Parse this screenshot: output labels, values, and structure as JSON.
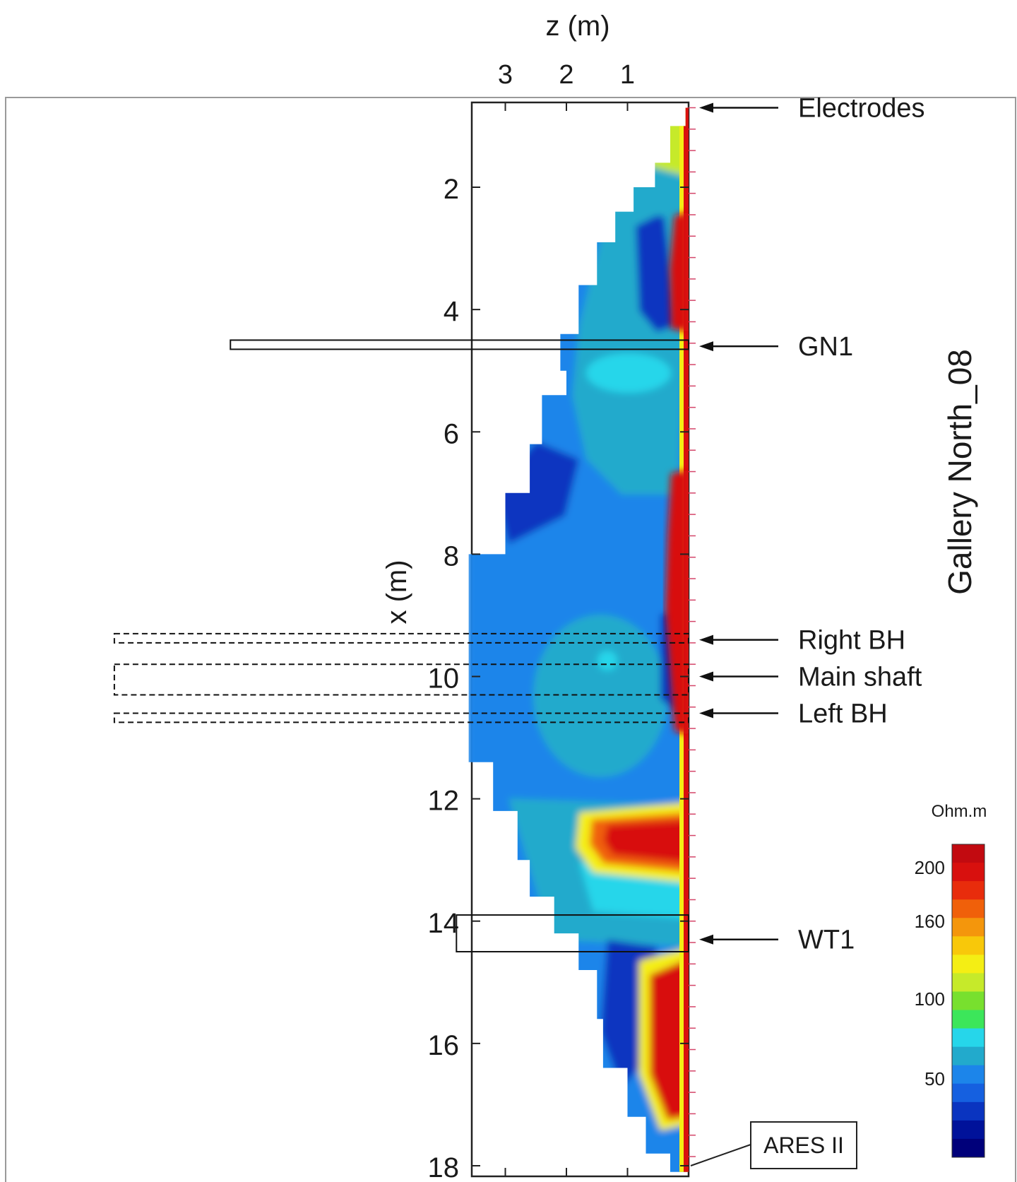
{
  "chart_data": {
    "type": "heatmap",
    "title": "Gallery North_08",
    "xlabel": "z (m)",
    "ylabel": "x (m)",
    "z_ticks": [
      3,
      2,
      1
    ],
    "z_range": [
      3.6,
      0
    ],
    "x_ticks": [
      2,
      4,
      6,
      8,
      10,
      12,
      14,
      16,
      18
    ],
    "x_range": [
      0.6,
      18.1
    ],
    "colorbar": {
      "unit": "Ohm.m",
      "ticks": [
        200,
        160,
        100,
        50
      ],
      "colors": [
        "#00007a",
        "#00129a",
        "#0a34c0",
        "#1560e0",
        "#1c85ea",
        "#22aacc",
        "#26d6ea",
        "#3ce65a",
        "#78e02e",
        "#c6ea2a",
        "#f4ee14",
        "#f8c80a",
        "#f4960c",
        "#f0600a",
        "#e82c0c",
        "#d8100e",
        "#c20a10"
      ]
    },
    "annotations": [
      {
        "label": "Electrodes",
        "x": 0.7
      },
      {
        "label": "GN1",
        "x": 4.6
      },
      {
        "label": "Right BH",
        "x": 9.4
      },
      {
        "label": "Main shaft",
        "x": 10.0
      },
      {
        "label": "Left BH",
        "x": 10.6
      },
      {
        "label": "WT1",
        "x": 14.3
      }
    ],
    "boxed_label": {
      "label": "ARES II",
      "x": 18.0
    },
    "structures": [
      {
        "name": "GN1",
        "x_from": 4.5,
        "x_to": 4.65,
        "z_depth": 7.5,
        "style": "solid"
      },
      {
        "name": "Right BH",
        "x_from": 9.3,
        "x_to": 9.45,
        "z_depth": 9.4,
        "style": "dashed"
      },
      {
        "name": "Main shaft",
        "x_from": 9.8,
        "x_to": 10.3,
        "z_depth": 9.4,
        "style": "dashed"
      },
      {
        "name": "Left BH",
        "x_from": 10.6,
        "x_to": 10.75,
        "z_depth": 9.4,
        "style": "dashed"
      },
      {
        "name": "WT1",
        "x_from": 13.9,
        "x_to": 14.5,
        "z_depth": 3.8,
        "style": "solid"
      }
    ],
    "model_boundary": [
      [
        0.7,
        0.05
      ],
      [
        1.0,
        0.3
      ],
      [
        1.6,
        0.55
      ],
      [
        2.0,
        0.9
      ],
      [
        2.4,
        1.2
      ],
      [
        2.9,
        1.5
      ],
      [
        3.6,
        1.8
      ],
      [
        4.4,
        2.1
      ],
      [
        5.0,
        2.0
      ],
      [
        5.4,
        2.4
      ],
      [
        6.2,
        2.6
      ],
      [
        7.0,
        3.0
      ],
      [
        8.0,
        3.6
      ],
      [
        9.0,
        3.6
      ],
      [
        10.6,
        3.6
      ],
      [
        11.4,
        3.2
      ],
      [
        12.2,
        2.8
      ],
      [
        13.0,
        2.6
      ],
      [
        13.6,
        2.2
      ],
      [
        14.2,
        1.8
      ],
      [
        14.8,
        1.5
      ],
      [
        15.6,
        1.4
      ],
      [
        16.4,
        1.0
      ],
      [
        17.2,
        0.7
      ],
      [
        17.8,
        0.3
      ],
      [
        18.1,
        0.05
      ]
    ]
  }
}
